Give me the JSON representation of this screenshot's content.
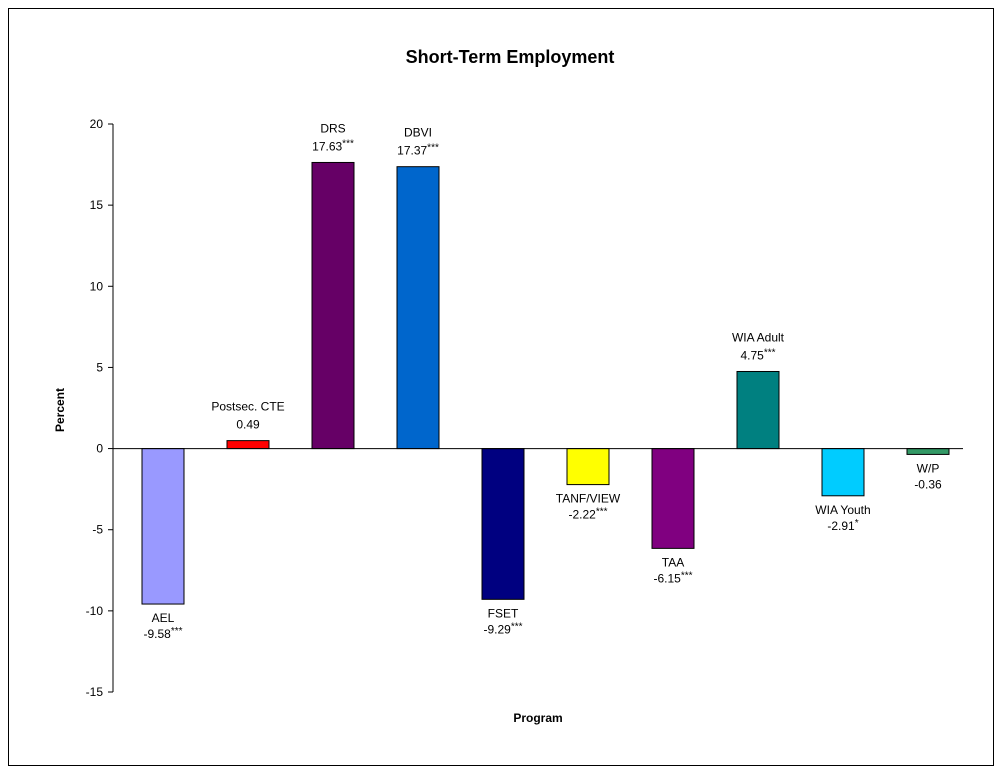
{
  "chart_data": {
    "type": "bar",
    "title": "Short-Term Employment",
    "x_label": "Program",
    "y_label": "Percent",
    "categories": [
      "AEL",
      "Postsec. CTE",
      "DRS",
      "DBVI",
      "FSET",
      "TANF/VIEW",
      "TAA",
      "WIA Adult",
      "WIA Youth",
      "W/P"
    ],
    "values": [
      -9.58,
      0.49,
      17.63,
      17.37,
      -9.29,
      -2.22,
      -6.15,
      4.75,
      -2.91,
      -0.36
    ],
    "significance": [
      "***",
      null,
      "***",
      "***",
      "***",
      "***",
      "***",
      "***",
      "*",
      null
    ],
    "colors": [
      "#9999ff",
      "#ff0000",
      "#660066",
      "#0066cc",
      "#000080",
      "#ffff00",
      "#800080",
      "#008080",
      "#00ccff",
      "#339966"
    ],
    "ylim": [
      -15,
      20
    ],
    "yticks": [
      -15,
      -10,
      -5,
      0,
      5,
      10,
      15,
      20
    ]
  }
}
